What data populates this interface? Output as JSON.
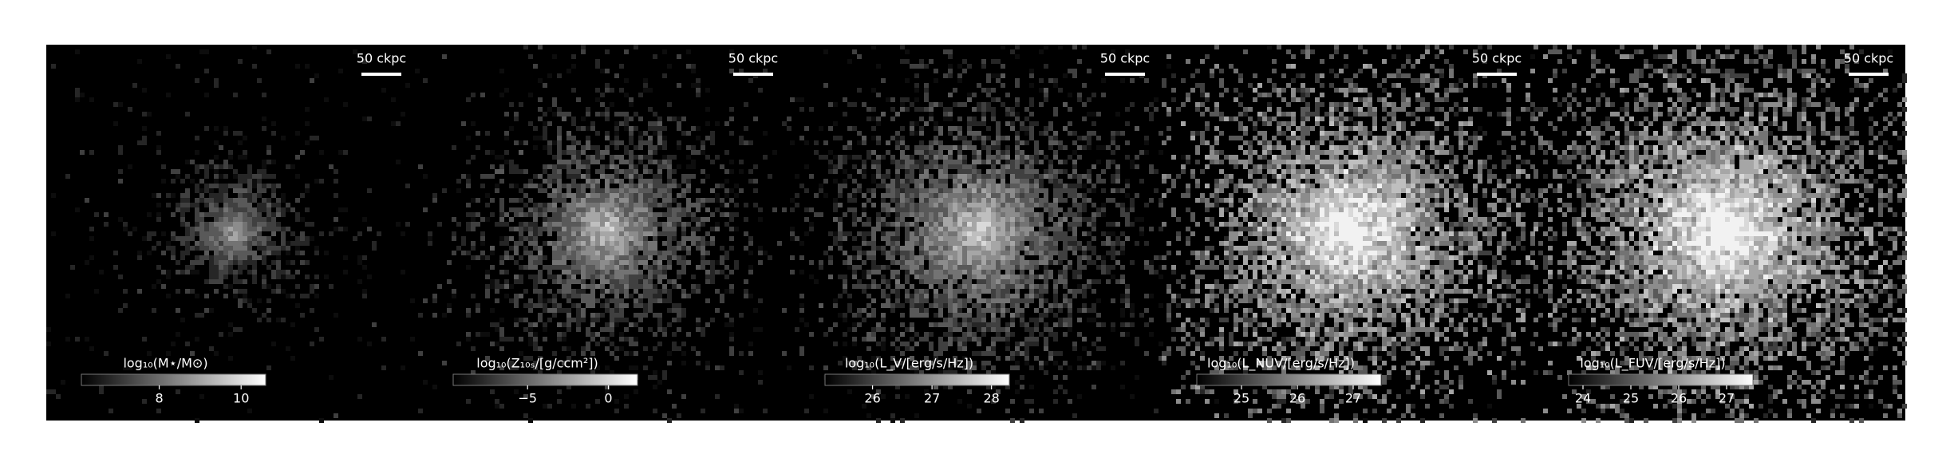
{
  "chart_data": [
    {
      "type": "image",
      "scalebar": "50 ckpc",
      "colorbar_label": "log₁₀(M⋆/M⊙)",
      "clim": [
        6.1,
        10.6
      ],
      "cticks": [
        8,
        10
      ]
    },
    {
      "type": "image",
      "scalebar": "50 ckpc",
      "colorbar_label": "log₁₀(Z₁₀ₛ/[g/ccm²])",
      "clim": [
        -9.6,
        1.8
      ],
      "cticks": [
        {
          "value": -5,
          "label": "−5"
        },
        0
      ]
    },
    {
      "type": "image",
      "scalebar": "50 ckpc",
      "colorbar_label": "log₁₀(L_V/[erg/s/Hz])",
      "clim": [
        25.2,
        28.3
      ],
      "cticks": [
        26,
        27,
        28
      ]
    },
    {
      "type": "image",
      "scalebar": "50 ckpc",
      "colorbar_label": "log₁₀(L_NUV/[erg/s/Hz])",
      "clim": [
        24.2,
        27.5
      ],
      "cticks": [
        25,
        26,
        27
      ]
    },
    {
      "type": "image",
      "scalebar": "50 ckpc",
      "colorbar_label": "log₁₀(L_FUV/[erg/s/Hz])",
      "clim": [
        23.7,
        27.55
      ],
      "cticks": [
        24,
        25,
        26,
        27
      ]
    }
  ]
}
